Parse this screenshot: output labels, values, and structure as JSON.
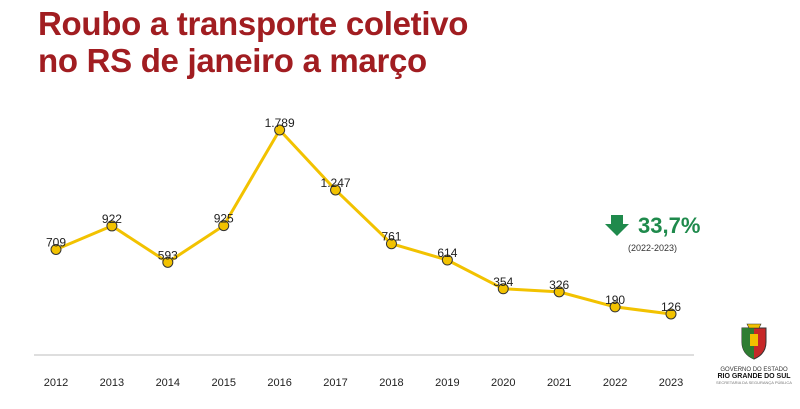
{
  "title_lines": [
    "Roubo a transporte coletivo",
    "no RS de janeiro a março"
  ],
  "chart_data": {
    "type": "line",
    "title": "Roubo a transporte coletivo no RS de janeiro a março",
    "xlabel": "",
    "ylabel": "",
    "x": [
      "2012",
      "2013",
      "2014",
      "2015",
      "2016",
      "2017",
      "2018",
      "2019",
      "2020",
      "2021",
      "2022",
      "2023"
    ],
    "values": [
      709,
      922,
      593,
      925,
      1789,
      1247,
      761,
      614,
      354,
      326,
      190,
      126
    ],
    "labels": [
      "709",
      "922",
      "593",
      "925",
      "1.789",
      "1.247",
      "761",
      "614",
      "354",
      "326",
      "190",
      "126"
    ],
    "ylim": [
      0,
      1800
    ],
    "grid": false,
    "line_color": "#f2c200"
  },
  "change": {
    "direction": "down",
    "value": "33,7%",
    "period": "(2022-2023)",
    "color": "#1f8a4c"
  },
  "logo": {
    "line1": "GOVERNO DO ESTADO",
    "line2": "RIO GRANDE DO SUL",
    "line3": "SECRETARIA DA SEGURANÇA PÚBLICA"
  }
}
